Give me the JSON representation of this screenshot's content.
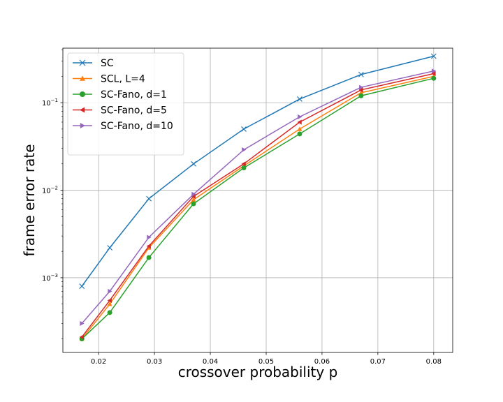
{
  "chart_data": {
    "type": "line",
    "title": "",
    "xlabel": "crossover probability p",
    "ylabel": "frame error rate",
    "xlim": [
      0.0136,
      0.0834
    ],
    "ylim": [
      0.00014,
      0.42
    ],
    "yscale": "log",
    "grid": true,
    "legend_position": "top-left",
    "x": [
      0.017,
      0.022,
      0.029,
      0.037,
      0.046,
      0.056,
      0.067,
      0.08
    ],
    "x_ticks": [
      0.02,
      0.03,
      0.04,
      0.05,
      0.06,
      0.07,
      0.08
    ],
    "x_tick_labels": [
      "0.02",
      "0.03",
      "0.04",
      "0.05",
      "0.06",
      "0.07",
      "0.08"
    ],
    "y_ticks": [
      0.001,
      0.01,
      0.1
    ],
    "y_tick_labels": [
      {
        "base": "10",
        "exp": "−3"
      },
      {
        "base": "10",
        "exp": "−2"
      },
      {
        "base": "10",
        "exp": "−1"
      }
    ],
    "series": [
      {
        "name": "SC",
        "color": "#1f77b4",
        "marker": "x",
        "values": [
          0.0008,
          0.0022,
          0.008,
          0.02,
          0.05,
          0.11,
          0.21,
          0.34
        ]
      },
      {
        "name": "SCL, L=4",
        "color": "#ff7f0e",
        "marker": "triangle-up",
        "values": [
          0.0002,
          0.0005,
          0.0022,
          0.0078,
          0.019,
          0.05,
          0.13,
          0.2
        ]
      },
      {
        "name": "SC-Fano, d=1",
        "color": "#2ca02c",
        "marker": "circle",
        "values": [
          0.0002,
          0.0004,
          0.0017,
          0.007,
          0.018,
          0.044,
          0.12,
          0.19
        ]
      },
      {
        "name": "SC-Fano, d=5",
        "color": "#d62728",
        "marker": "triangle-left",
        "values": [
          0.00021,
          0.00055,
          0.0023,
          0.0085,
          0.02,
          0.06,
          0.14,
          0.215
        ]
      },
      {
        "name": "SC-Fano, d=10",
        "color": "#9467bd",
        "marker": "triangle-right",
        "values": [
          0.0003,
          0.0007,
          0.0029,
          0.009,
          0.029,
          0.069,
          0.15,
          0.23
        ]
      }
    ]
  }
}
